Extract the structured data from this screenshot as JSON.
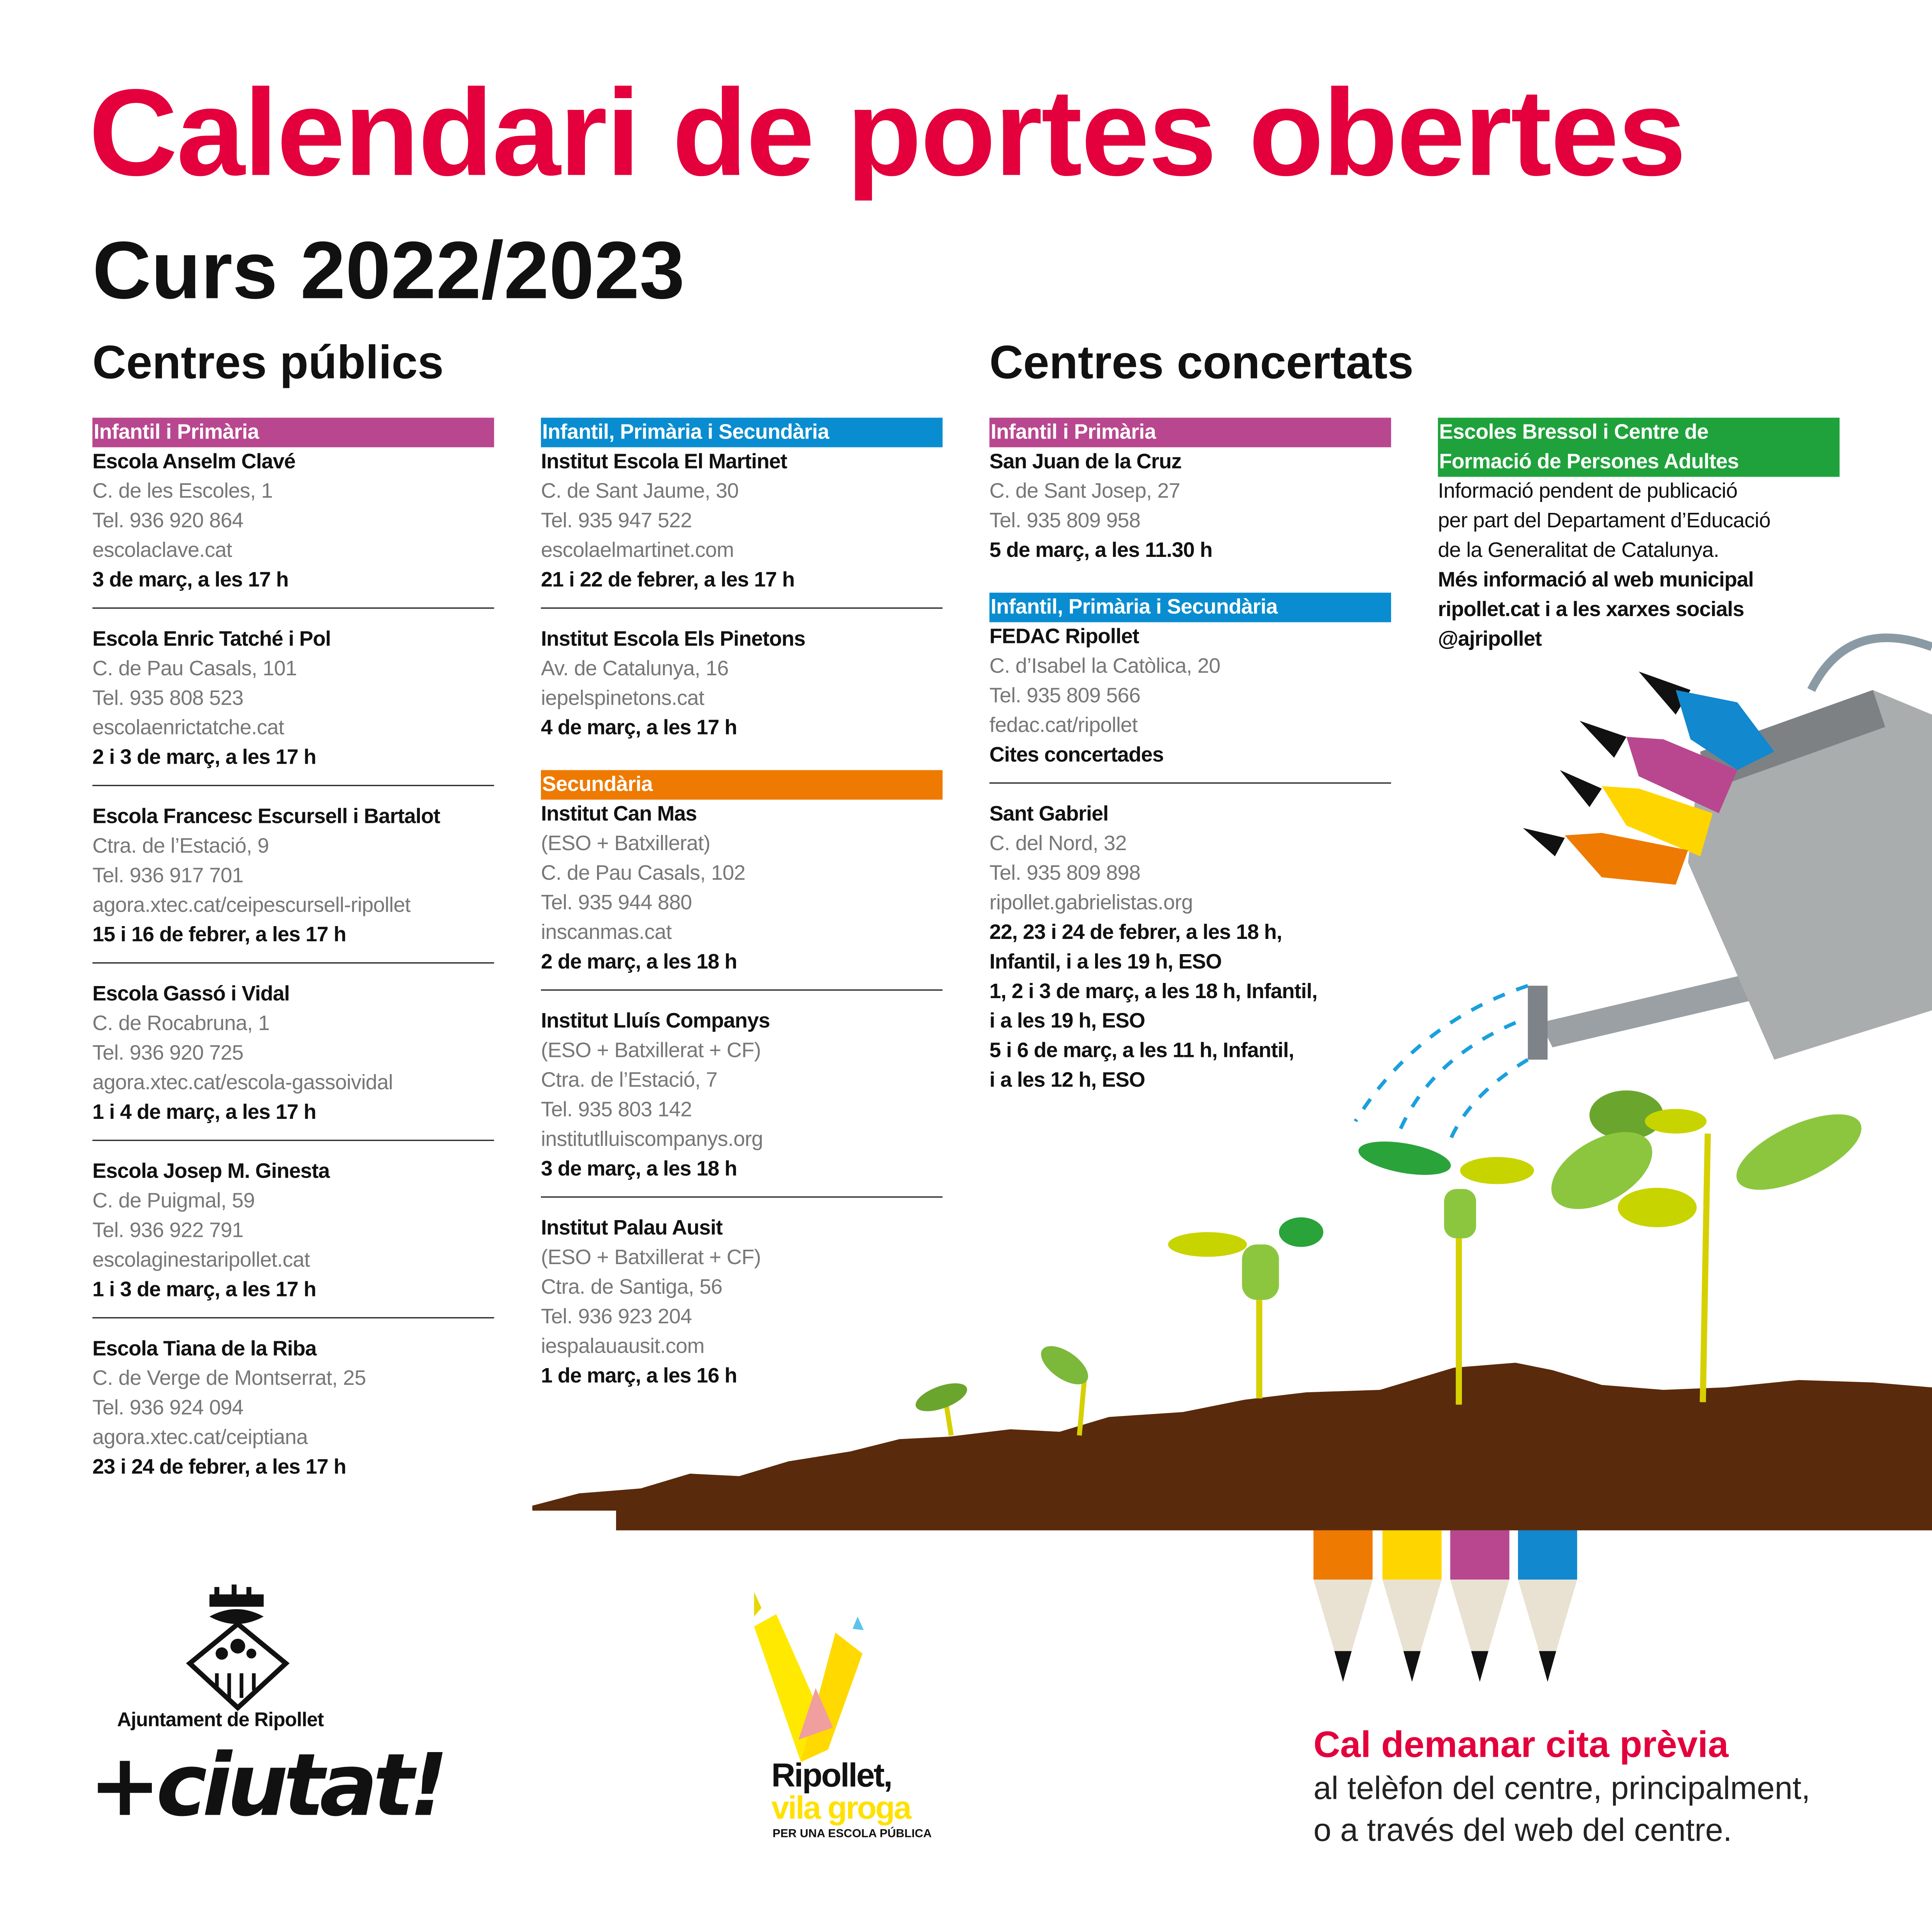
{
  "colors": {
    "title": "#e3003c",
    "purple": "#b8478f",
    "blue": "#0a8dd0",
    "orange": "#ee7a02",
    "green": "#1fa23b",
    "soil": "#5a2a0c",
    "yellow": "#ffe100"
  },
  "title": "Calendari de portes obertes",
  "subtitle": "Curs 2022/2023",
  "publics": {
    "title": "Centres públics",
    "columns": [
      [
        {
          "header": "Infantil i Primària",
          "color": "purple",
          "entries": [
            {
              "name": "Escola Anselm Clavé",
              "info": [
                "C. de les Escoles, 1",
                "Tel. 936 920 864",
                "escolaclave.cat"
              ],
              "dates": [
                "3 de març, a les 17 h"
              ]
            },
            {
              "name": "Escola Enric Tatché i Pol",
              "info": [
                "C. de Pau Casals, 101",
                "Tel. 935 808 523",
                "escolaenrictatche.cat"
              ],
              "dates": [
                "2 i 3 de març, a les 17 h"
              ]
            },
            {
              "name": "Escola Francesc Escursell i Bartalot",
              "info": [
                "Ctra. de l’Estació, 9",
                "Tel. 936 917 701",
                "agora.xtec.cat/ceipescursell-ripollet"
              ],
              "dates": [
                "15 i 16 de febrer, a les 17 h"
              ]
            },
            {
              "name": "Escola Gassó i Vidal",
              "info": [
                "C. de Rocabruna, 1",
                "Tel. 936 920 725",
                "agora.xtec.cat/escola-gassoividal"
              ],
              "dates": [
                "1 i 4 de març, a les 17 h"
              ]
            },
            {
              "name": "Escola Josep M. Ginesta",
              "info": [
                "C. de Puigmal, 59",
                "Tel. 936 922 791",
                "escolaginestaripollet.cat"
              ],
              "dates": [
                "1 i 3 de març, a les 17 h"
              ]
            },
            {
              "name": "Escola Tiana de la Riba",
              "info": [
                "C. de Verge de Montserrat, 25",
                "Tel. 936 924 094",
                "agora.xtec.cat/ceiptiana"
              ],
              "dates": [
                "23 i 24 de febrer, a les 17 h"
              ]
            }
          ]
        }
      ],
      [
        {
          "header": "Infantil, Primària i Secundària",
          "color": "blue",
          "entries": [
            {
              "name": "Institut Escola El Martinet",
              "info": [
                "C. de Sant Jaume, 30",
                "Tel. 935 947 522",
                "escolaelmartinet.com"
              ],
              "dates": [
                "21 i 22 de febrer, a les 17 h"
              ]
            },
            {
              "name": "Institut Escola Els Pinetons",
              "info": [
                "Av. de Catalunya, 16",
                "iepelspinetons.cat"
              ],
              "dates": [
                "4 de març, a les 17 h"
              ]
            }
          ]
        },
        {
          "header": "Secundària",
          "color": "orange",
          "entries": [
            {
              "name": "Institut Can Mas",
              "info": [
                "(ESO + Batxillerat)",
                "C. de Pau Casals, 102",
                "Tel. 935 944 880",
                "inscanmas.cat"
              ],
              "dates": [
                "2 de març, a les 18 h"
              ]
            },
            {
              "name": "Institut Lluís Companys",
              "info": [
                "(ESO + Batxillerat + CF)",
                "Ctra. de l’Estació, 7",
                "Tel. 935 803 142",
                "institutlluiscompanys.org"
              ],
              "dates": [
                "3 de març, a les 18 h"
              ]
            },
            {
              "name": "Institut Palau Ausit",
              "info": [
                "(ESO + Batxillerat + CF)",
                "Ctra. de Santiga, 56",
                "Tel. 936 923 204",
                "iespalauausit.com"
              ],
              "dates": [
                "1 de març, a les 16 h"
              ]
            }
          ]
        }
      ]
    ]
  },
  "concertats": {
    "title": "Centres concertats",
    "columns": [
      [
        {
          "header": "Infantil i Primària",
          "color": "purple",
          "entries": [
            {
              "name": "San Juan de la Cruz",
              "info": [
                "C. de Sant Josep, 27",
                "Tel. 935 809 958"
              ],
              "dates": [
                "5 de març, a les 11.30 h"
              ]
            }
          ]
        },
        {
          "header": "Infantil, Primària i Secundària",
          "color": "blue",
          "entries": [
            {
              "name": "FEDAC Ripollet",
              "info": [
                "C. d’Isabel la Catòlica, 20",
                "Tel. 935 809 566",
                "fedac.cat/ripollet"
              ],
              "dates": [
                "Cites concertades"
              ]
            },
            {
              "name": "Sant Gabriel",
              "info": [
                "C. del Nord, 32",
                "Tel. 935 809 898",
                "ripollet.gabrielistas.org"
              ],
              "dates": [
                "22, 23 i 24 de febrer, a les 18 h,",
                "Infantil, i a les 19 h, ESO",
                "1, 2 i 3 de març, a les 18 h, Infantil,",
                "i a les 19 h, ESO",
                "5 i 6 de març, a les 11 h, Infantil,",
                "i a les 12 h, ESO"
              ]
            }
          ]
        }
      ]
    ],
    "bressol": {
      "header": [
        "Escoles Bressol i Centre de",
        "Formació de Persones Adultes"
      ],
      "info": [
        "Informació pendent de publicació",
        "per part del Departament d’Educació",
        "de la Generalitat de Catalunya."
      ],
      "more": [
        "Més informació al web municipal",
        "ripollet.cat i a les xarxes socials",
        "@ajripollet"
      ]
    }
  },
  "cta": {
    "title": "Cal demanar cita prèvia",
    "lines": [
      "al telèfon del centre, principalment,",
      "o a través del web del centre."
    ]
  },
  "logos": {
    "ajuntament": "Ajuntament de Ripollet",
    "ciutat": "+ciutat!",
    "vila_groga": [
      "Ripollet,",
      "vila groga",
      "PER UNA ESCOLA PÚBLICA"
    ]
  }
}
